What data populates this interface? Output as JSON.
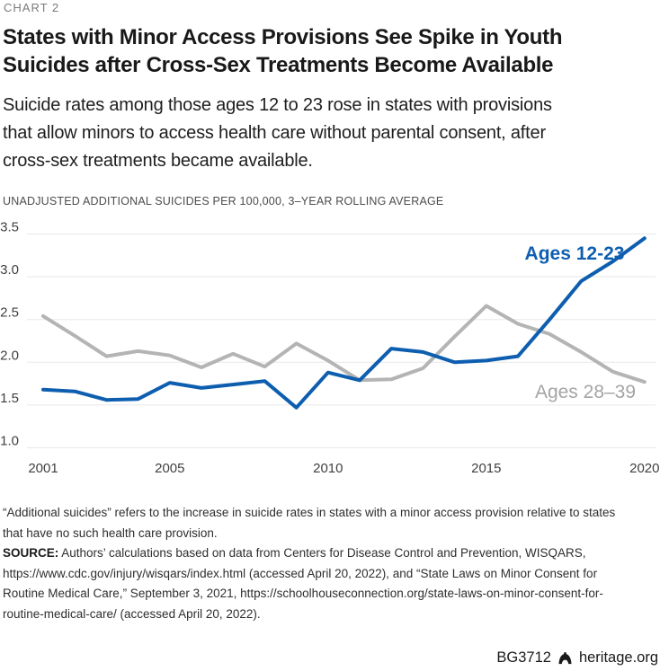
{
  "page": {
    "eyebrow": "CHART 2",
    "title_lines": [
      "States with Minor Access Provisions See Spike in Youth",
      "Suicides after Cross-Sex Treatments Become Available"
    ],
    "subtitle_lines": [
      "Suicide rates among those ages 12 to 23 rose in states with provisions",
      "that allow minors to access health care without parental consent, after",
      "cross-sex treatments became available."
    ],
    "axis_note": "UNADJUSTED ADDITIONAL SUICIDES PER 100,000, 3–YEAR ROLLING AVERAGE"
  },
  "chart_data": {
    "type": "line",
    "x": [
      2001,
      2002,
      2003,
      2004,
      2005,
      2006,
      2007,
      2008,
      2009,
      2010,
      2011,
      2012,
      2013,
      2014,
      2015,
      2016,
      2017,
      2018,
      2019,
      2020
    ],
    "series": [
      {
        "name": "Ages 12-23",
        "color": "#0e5eb0",
        "values": [
          1.68,
          1.66,
          1.56,
          1.57,
          1.76,
          1.7,
          1.74,
          1.78,
          1.47,
          1.88,
          1.79,
          2.16,
          2.12,
          2.0,
          2.02,
          2.07,
          2.5,
          2.95,
          3.18,
          3.45
        ]
      },
      {
        "name": "Ages 28–39",
        "color": "#b4b4b4",
        "values": [
          2.54,
          2.31,
          2.07,
          2.13,
          2.08,
          1.94,
          2.1,
          1.95,
          2.22,
          2.02,
          1.79,
          1.8,
          1.93,
          2.3,
          2.66,
          2.45,
          2.33,
          2.12,
          1.89,
          1.77
        ]
      }
    ],
    "ylim": [
      1.0,
      3.5
    ],
    "yticks": [
      1.0,
      1.5,
      2.0,
      2.5,
      3.0,
      3.5
    ],
    "ytick_labels": [
      "1.0",
      "1.5",
      "2.0",
      "2.5",
      "3.0",
      "3.5"
    ],
    "xticks": [
      2001,
      2005,
      2010,
      2015,
      2020
    ],
    "grid": "horizontal",
    "legend": "inline-labels",
    "label_colors": {
      "Ages 12-23": "#0e5eb0",
      "Ages 28–39": "#a4a4a4"
    },
    "tick_color": "#404040",
    "grid_color": "#e8e8e8"
  },
  "footer": {
    "note_lines": [
      "“Additional suicides” refers to the increase in suicide rates in states with a minor access provision relative to states",
      "that have no such health care provision."
    ],
    "source_label": "SOURCE:",
    "source_lines": [
      " Authors’ calculations based on data from Centers for Disease Control and Prevention, WISQARS,",
      "https://www.cdc.gov/injury/wisqars/index.html (accessed April 20, 2022), and “State Laws on Minor Consent for",
      "Routine Medical Care,” September 3, 2021, https://schoolhouseconnection.org/state-laws-on-minor-consent-for-",
      "routine-medical-care/ (accessed April 20, 2022)."
    ],
    "doc_id": "BG3712",
    "site": "heritage.org"
  }
}
